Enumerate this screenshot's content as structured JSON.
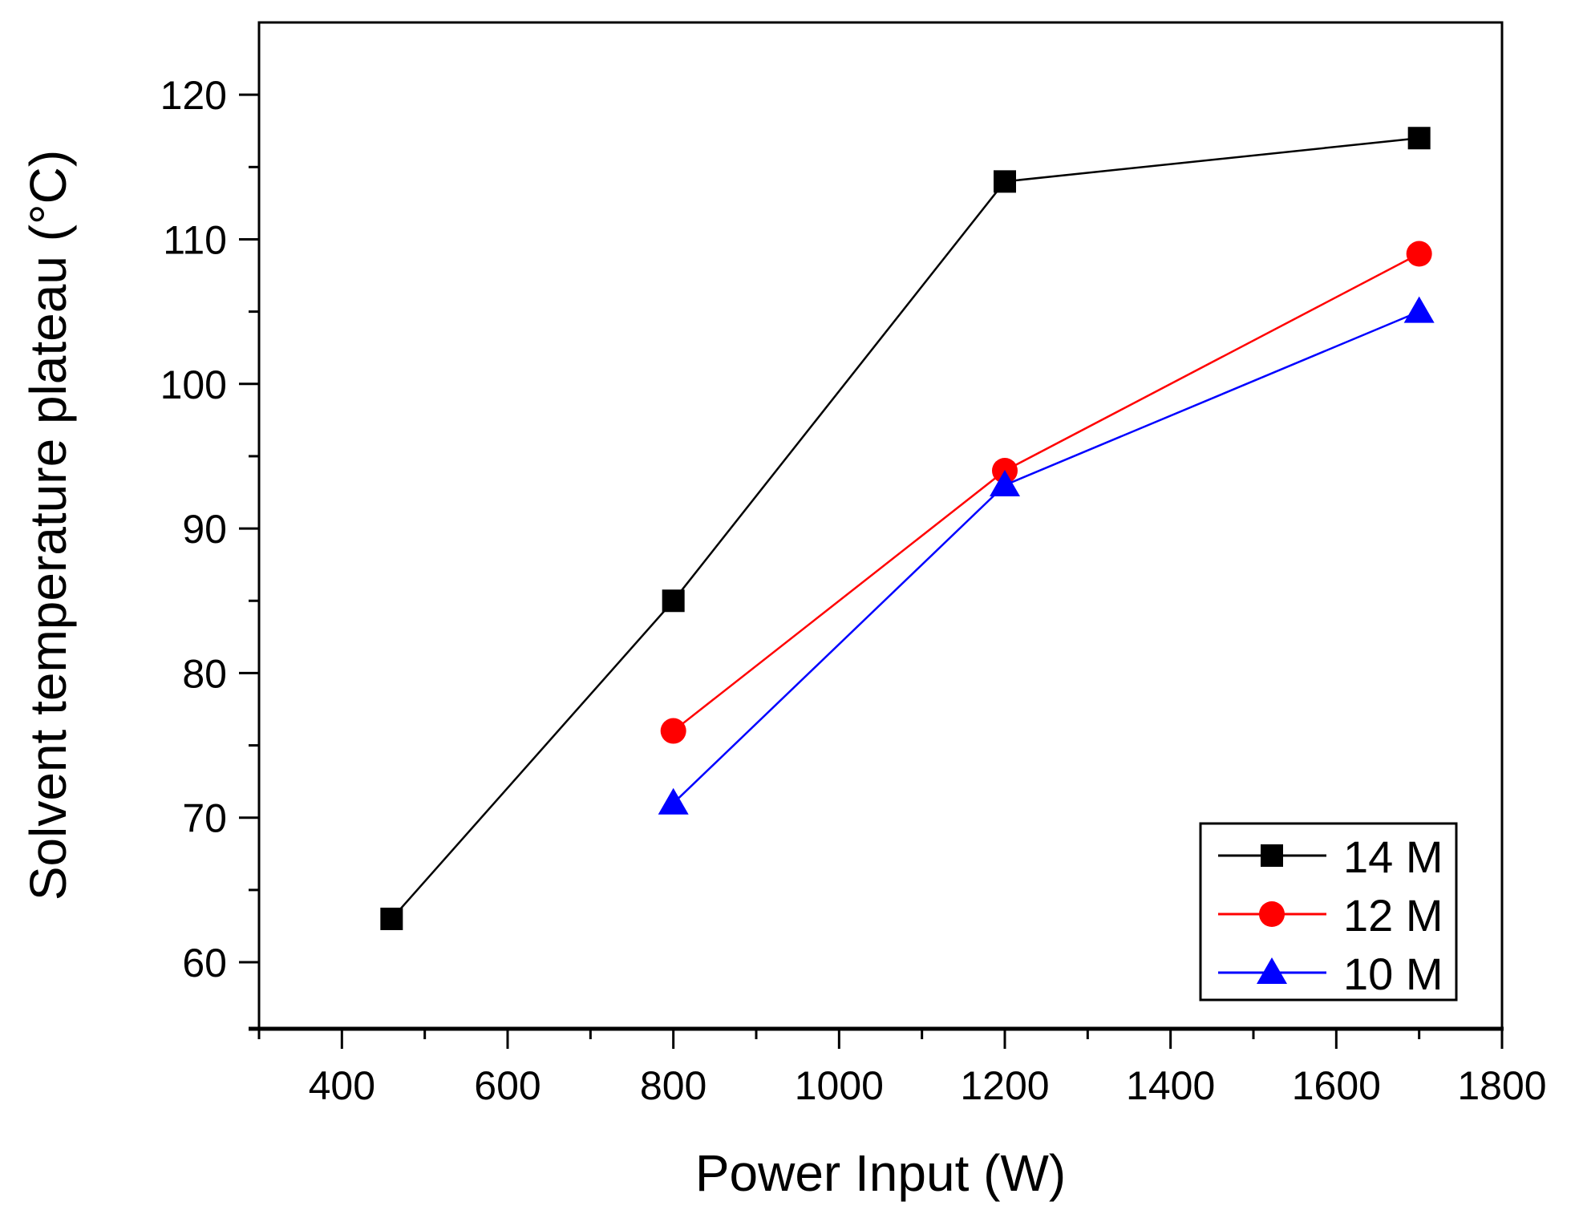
{
  "chart_data": {
    "type": "line",
    "title": "",
    "xlabel": "Power Input (W)",
    "ylabel": "Solvent temperature plateau (°C)",
    "ylabel_parts": {
      "main": "Solvent temperature plateau (",
      "sup": "o",
      "end": "C)"
    },
    "xlim": [
      300,
      1800
    ],
    "ylim": [
      55.4,
      125
    ],
    "xticks": [
      400,
      600,
      800,
      1000,
      1200,
      1400,
      1600,
      1800
    ],
    "yticks": [
      60,
      70,
      80,
      90,
      100,
      110,
      120
    ],
    "grid": false,
    "legend_position": "bottom-right",
    "series": [
      {
        "name": "14 M",
        "color": "#000000",
        "marker": "square",
        "x": [
          460,
          800,
          1200,
          1700
        ],
        "y": [
          63,
          85,
          114,
          117
        ]
      },
      {
        "name": "12 M",
        "color": "#ff0000",
        "marker": "circle",
        "x": [
          800,
          1200,
          1700
        ],
        "y": [
          76,
          94,
          109
        ]
      },
      {
        "name": "10 M",
        "color": "#0000ff",
        "marker": "triangle",
        "x": [
          800,
          1200,
          1700
        ],
        "y": [
          71,
          93,
          105
        ]
      }
    ]
  }
}
